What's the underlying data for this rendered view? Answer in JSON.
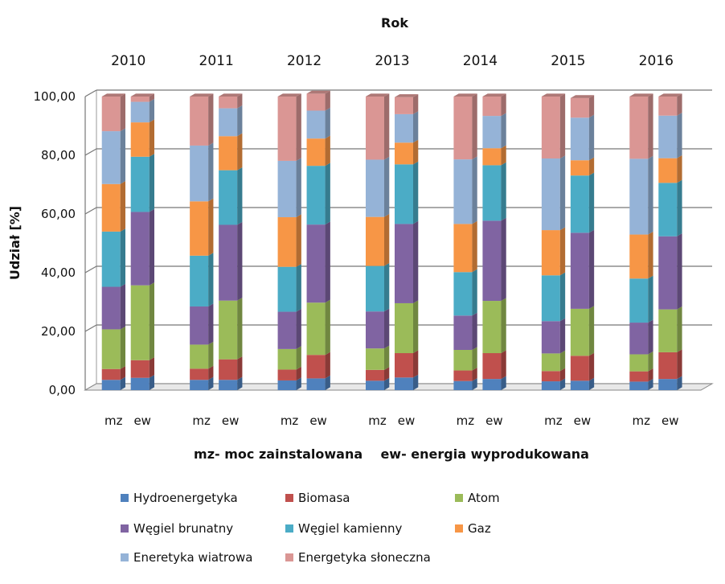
{
  "chart_data": {
    "type": "bar",
    "stacked": true,
    "title": "Rok",
    "ylabel": "Udział [%]",
    "note": "mz- moc zainstalowana    ew- energia wyprodukowana",
    "ylim": [
      0,
      100
    ],
    "yticks": [
      "0,00",
      "20,00",
      "40,00",
      "60,00",
      "80,00",
      "100,00"
    ],
    "grid": true,
    "legend_position": "bottom",
    "groups": [
      "2010",
      "2011",
      "2012",
      "2013",
      "2014",
      "2015",
      "2016"
    ],
    "categories": [
      "mz",
      "ew"
    ],
    "series": [
      {
        "name": "Hydroenergetyka",
        "color": "#4F81BD",
        "mz": [
          3.5,
          3.5,
          3.3,
          3.2,
          3.1,
          3.0,
          2.9
        ],
        "ew": [
          4.2,
          3.5,
          4.0,
          4.3,
          3.8,
          3.2,
          3.8
        ]
      },
      {
        "name": "Biomasa",
        "color": "#C0504D",
        "mz": [
          3.7,
          3.8,
          3.7,
          3.7,
          3.6,
          3.5,
          3.5
        ],
        "ew": [
          6.0,
          7.0,
          8.0,
          8.3,
          8.8,
          8.5,
          9.1
        ]
      },
      {
        "name": "Atom",
        "color": "#9BBB59",
        "mz": [
          13.5,
          8.2,
          7.0,
          7.3,
          7.0,
          6.0,
          5.8
        ],
        "ew": [
          25.5,
          20.0,
          17.8,
          17.0,
          17.8,
          16.0,
          14.6
        ]
      },
      {
        "name": "Węgiel brunatny",
        "color": "#8064A2",
        "mz": [
          14.5,
          13.0,
          12.7,
          12.6,
          11.7,
          11.0,
          10.8
        ],
        "ew": [
          25.0,
          25.8,
          26.6,
          27.0,
          27.3,
          25.9,
          24.9
        ]
      },
      {
        "name": "Węgiel kamienny",
        "color": "#4BACC6",
        "mz": [
          18.8,
          17.3,
          15.3,
          15.5,
          14.8,
          15.6,
          15.0
        ],
        "ew": [
          18.8,
          18.6,
          20.0,
          20.3,
          18.9,
          19.5,
          18.2
        ]
      },
      {
        "name": "Gaz",
        "color": "#F79646",
        "mz": [
          16.2,
          18.5,
          16.9,
          16.7,
          16.4,
          15.4,
          15.0
        ],
        "ew": [
          11.7,
          11.6,
          9.3,
          7.4,
          5.8,
          5.2,
          8.4
        ]
      },
      {
        "name": "Eneretyka wiatrowa",
        "color": "#95B3D7",
        "mz": [
          18.0,
          19.0,
          19.2,
          19.5,
          22.0,
          24.4,
          25.8
        ],
        "ew": [
          7.0,
          9.5,
          9.5,
          9.7,
          11.0,
          14.5,
          14.5
        ]
      },
      {
        "name": "Energetyka słoneczna",
        "color": "#DA9694",
        "mz": [
          11.8,
          16.7,
          21.9,
          21.5,
          21.4,
          21.1,
          21.2
        ],
        "ew": [
          1.8,
          4.0,
          5.8,
          5.8,
          6.6,
          6.7,
          6.5
        ]
      }
    ]
  }
}
